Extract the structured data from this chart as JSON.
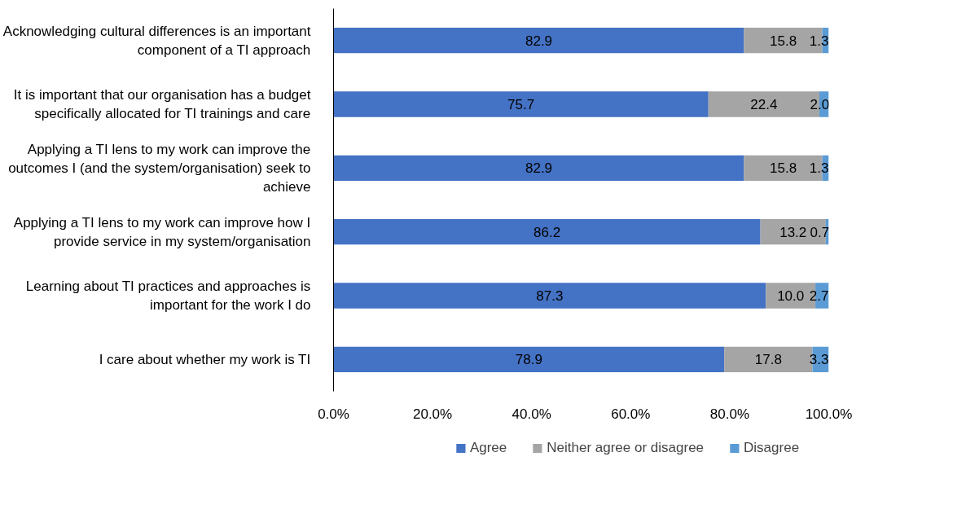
{
  "chart_data": {
    "type": "bar",
    "orientation": "horizontal",
    "stacked": true,
    "categories": [
      "Acknowledging cultural differences is an important component of a TI approach",
      "It is important that our organisation has a budget specifically allocated for TI trainings and care",
      "Applying a TI lens to my work can improve the outcomes I (and the system/organisation) seek to achieve",
      "Applying a TI lens to my work can improve how I provide service in my system/organisation",
      "Learning about TI practices and approaches is important for the work I do",
      "I care about whether my work is TI"
    ],
    "series": [
      {
        "name": "Agree",
        "color": "#4472c4",
        "values": [
          82.9,
          75.7,
          82.9,
          86.2,
          87.3,
          78.9
        ],
        "value_labels": [
          "82.9",
          "75.7",
          "82.9",
          "86.2",
          "87.3",
          "78.9"
        ]
      },
      {
        "name": "Neither agree or disagree",
        "color": "#a5a5a5",
        "values": [
          15.8,
          22.4,
          15.8,
          13.2,
          10.0,
          17.8
        ],
        "value_labels": [
          "15.8",
          "22.4",
          "15.8",
          "13.2",
          "10.0",
          "17.8"
        ]
      },
      {
        "name": "Disagree",
        "color": "#5b9bd5",
        "values": [
          1.3,
          2.0,
          1.3,
          0.7,
          2.7,
          3.3
        ],
        "value_labels": [
          "1.3",
          "2.0",
          "1.3",
          "0.7",
          "2.7",
          "3.3"
        ]
      }
    ],
    "xlim": [
      0,
      100
    ],
    "xticks": [
      {
        "value": 0,
        "label": "0.0%"
      },
      {
        "value": 20,
        "label": "20.0%"
      },
      {
        "value": 40,
        "label": "40.0%"
      },
      {
        "value": 60,
        "label": "60.0%"
      },
      {
        "value": 80,
        "label": "80.0%"
      },
      {
        "value": 100,
        "label": "100.0%"
      }
    ],
    "legend": "bottom",
    "grid": false
  }
}
